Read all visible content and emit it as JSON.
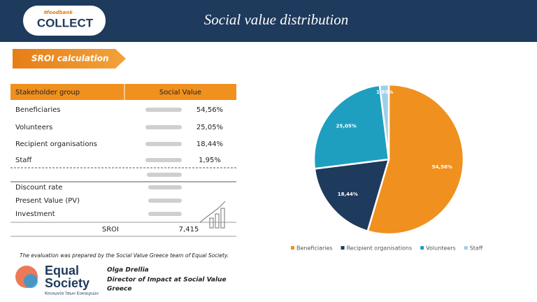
{
  "header": {
    "logo_tag": "#foodbank",
    "logo_text": "COLLECT",
    "title": "Social value distribution"
  },
  "section_label": "SROI calculation",
  "table": {
    "columns": [
      "Stakeholder group",
      "Social Value"
    ],
    "rows": [
      [
        "Beneficiaries",
        "54,56%"
      ],
      [
        "Volunteers",
        "25,05%"
      ],
      [
        "Recipient organisations",
        "18,44%"
      ],
      [
        "Staff",
        "1,95%"
      ]
    ],
    "summary": [
      "Discount rate",
      "Present Value (PV)",
      "Investment"
    ],
    "sroi": [
      "SROI",
      "7,415"
    ]
  },
  "footnote": "The evaluation was prepared by the Social Value Greece team of Equal Society.",
  "org": {
    "line1": "Equal",
    "line2": "Society",
    "tagline": "Κοινωνία Ίσων Ευκαιριών"
  },
  "signatory": {
    "name": "Olga Drellia",
    "role": "Director of Impact at Social Value",
    "location": "Greece"
  },
  "chart_data": {
    "type": "pie",
    "categories": [
      "Beneficiaries",
      "Recipient organisations",
      "Volunteers",
      "Staff"
    ],
    "values": [
      54.56,
      18.44,
      25.05,
      1.95
    ],
    "value_labels": [
      "54,56%",
      "18,44%",
      "25,05%",
      "1,95%"
    ],
    "colors": [
      "#f0901e",
      "#1e3a5c",
      "#1f9fc0",
      "#9fcfe8"
    ],
    "legend": "bottom"
  }
}
